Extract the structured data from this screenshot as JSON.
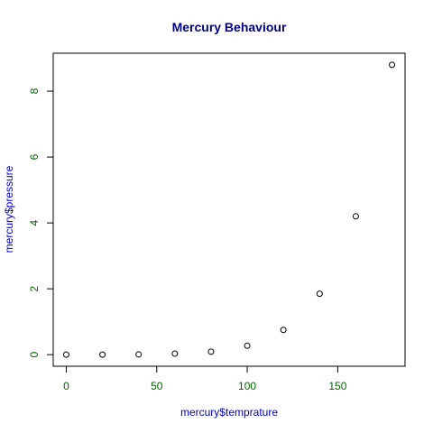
{
  "chart_data": {
    "type": "scatter",
    "title": "Mercury Behaviour",
    "xlabel": "mercury$temprature",
    "ylabel": "mercury$pressure",
    "x": [
      0,
      20,
      40,
      60,
      80,
      100,
      120,
      140,
      160,
      180
    ],
    "y": [
      0.0002,
      0.0012,
      0.006,
      0.03,
      0.09,
      0.27,
      0.75,
      1.85,
      4.2,
      8.8
    ],
    "xlim": [
      -7.2,
      187.2
    ],
    "ylim": [
      -0.352,
      9.152
    ],
    "x_ticks": [
      0,
      50,
      100,
      150
    ],
    "y_ticks": [
      0,
      2,
      4,
      6,
      8
    ],
    "grid": false,
    "marker": "open-circle",
    "colors": {
      "title": "#000080",
      "axis_title": "#0000cc",
      "tick_label": "#006400",
      "axis": "#000000",
      "points": "#000000"
    }
  }
}
